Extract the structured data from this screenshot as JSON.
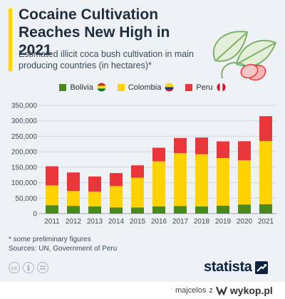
{
  "header": {
    "title": "Cocaine Cultivation Reaches New High in 2021",
    "subtitle": "Estimated illicit coca bush cultivation in main producing countries (in hectares)*"
  },
  "colors": {
    "bolivia": "#4a8a1c",
    "colombia": "#ffd200",
    "peru": "#e8363a",
    "accent": "#ffd200",
    "brand": "#0b2341"
  },
  "chart_data": {
    "type": "bar",
    "stacked": true,
    "categories": [
      "2011",
      "2012",
      "2013",
      "2014",
      "2015",
      "2016",
      "2017",
      "2018",
      "2019",
      "2020",
      "2021"
    ],
    "series": [
      {
        "name": "Bolivia",
        "values": [
          27000,
          25000,
          23000,
          20000,
          20000,
          23000,
          24500,
          23000,
          25500,
          29500,
          30500
        ]
      },
      {
        "name": "Colombia",
        "values": [
          64000,
          48000,
          48000,
          69000,
          96000,
          146000,
          171000,
          169000,
          154000,
          143000,
          204000
        ]
      },
      {
        "name": "Peru",
        "values": [
          62000,
          60000,
          49000,
          42000,
          40000,
          44000,
          49000,
          54000,
          54000,
          61500,
          80500
        ]
      }
    ],
    "ylim": [
      0,
      350000
    ],
    "yticks": [
      "0",
      "50,000",
      "100,000",
      "150,000",
      "200,000",
      "250,000",
      "300,000",
      "350,000"
    ],
    "ytick_values": [
      0,
      50000,
      100000,
      150000,
      200000,
      250000,
      300000,
      350000
    ],
    "grid": true,
    "legend_position": "top-center"
  },
  "footnote": {
    "note": "* some preliminary figures",
    "sources": "Sources: UN, Government of Peru"
  },
  "brand": {
    "name": "statista"
  },
  "license_icons": [
    "cc-icon",
    "attribution-icon",
    "no-derivatives-icon"
  ],
  "watermark": {
    "user": "majcelos",
    "separator": "z",
    "site": "wykop.pl"
  }
}
